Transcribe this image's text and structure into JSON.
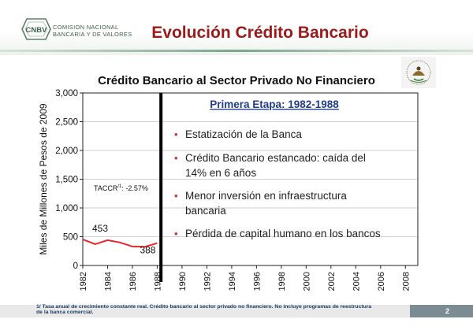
{
  "header": {
    "logo_mark": "CNBV",
    "logo_line1": "COMISION NACIONAL",
    "logo_line2": "BANCARIA Y DE VALORES",
    "slide_title": "Evolución Crédito Bancario"
  },
  "chart_data": {
    "type": "line",
    "title": "Crédito Bancario al Sector Privado No Financiero",
    "ylabel": "Miles de Millones de Pesos de 2009",
    "xlabel": "",
    "ylim": [
      0,
      3000
    ],
    "yticks": [
      "0",
      "500",
      "1,000",
      "1,500",
      "2,000",
      "2,500",
      "3,000"
    ],
    "ytick_values": [
      0,
      500,
      1000,
      1500,
      2000,
      2500,
      3000
    ],
    "xlim": [
      1982,
      2009
    ],
    "xticks": [
      "1982",
      "1984",
      "1986",
      "1988",
      "1990",
      "1992",
      "1994",
      "1996",
      "1998",
      "2000",
      "2002",
      "2004",
      "2006",
      "2008"
    ],
    "xtick_values": [
      1982,
      1984,
      1986,
      1988,
      1990,
      1992,
      1994,
      1996,
      1998,
      2000,
      2002,
      2004,
      2006,
      2008
    ],
    "grid": true,
    "series": [
      {
        "color": "#e8262b",
        "x": [
          1982,
          1983,
          1984,
          1985,
          1986,
          1987,
          1988
        ],
        "y": [
          453,
          370,
          440,
          400,
          330,
          325,
          388
        ]
      }
    ],
    "labels": {
      "first": "453",
      "last": "388"
    },
    "annotation": {
      "prefix": "TACCR",
      "superscript": "/1",
      "suffix": ": -2.57%"
    },
    "divider_year": 1988.3,
    "panel": {
      "heading": "Primera Etapa: 1982-1988",
      "bullets": [
        {
          "line1": "Estatización de la Banca",
          "line2": ""
        },
        {
          "line1": "Crédito Bancario estancado: caída del",
          "line2": "14% en 6 años"
        },
        {
          "line1": "Menor inversión en infraestructura",
          "line2": "bancaria"
        },
        {
          "line1": "Pérdida de capital humano en los bancos",
          "line2": ""
        }
      ]
    }
  },
  "footer": {
    "note_line1": "1/ Tasa anual de crecimiento constante real. Crédito bancario al sector privado no financiero. No incluye programas de reestructura",
    "note_line2": "de la banca comercial.",
    "page_number": "2"
  },
  "colors": {
    "title": "#9b1b1b",
    "series": "#e8262b",
    "heading": "#1f3d8a",
    "bullet": "#d02a2a",
    "footer_text": "#1f3d62"
  }
}
